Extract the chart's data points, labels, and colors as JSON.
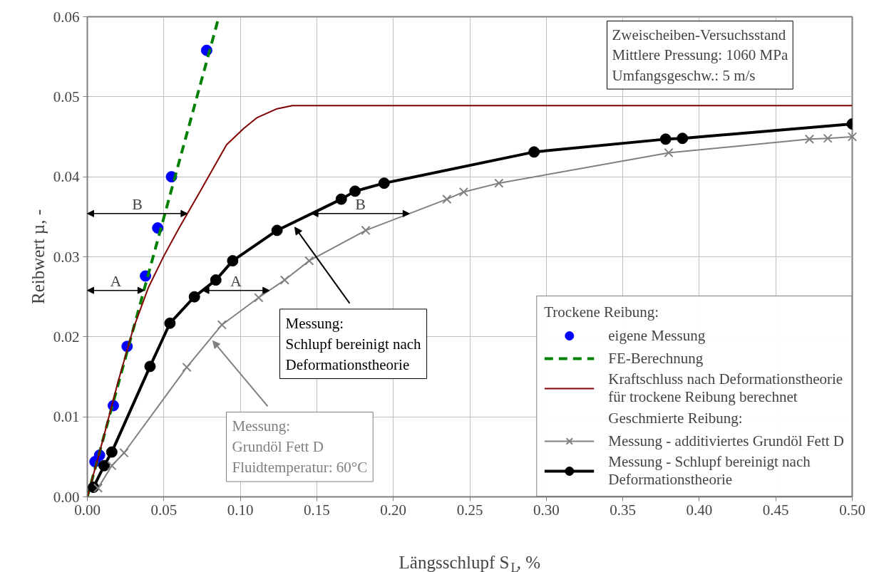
{
  "chart_data": {
    "type": "line",
    "xlabel": "Längsschlupf S$_{L}$, %",
    "ylabel": "Reibwert µ, -",
    "xlim": [
      0,
      0.5
    ],
    "ylim": [
      0,
      0.06
    ],
    "xticks": [
      {
        "value": 0,
        "label": "0.00"
      },
      {
        "value": 0.05,
        "label": "0.05"
      },
      {
        "value": 0.1,
        "label": "0.10"
      },
      {
        "value": 0.15,
        "label": "0.15"
      },
      {
        "value": 0.2,
        "label": "0.20"
      },
      {
        "value": 0.25,
        "label": "0.25"
      },
      {
        "value": 0.3,
        "label": "0.30"
      },
      {
        "value": 0.35,
        "label": "0.35"
      },
      {
        "value": 0.4,
        "label": "0.40"
      },
      {
        "value": 0.45,
        "label": "0.45"
      },
      {
        "value": 0.5,
        "label": "0.50"
      }
    ],
    "yticks": [
      {
        "value": 0,
        "label": "0.00"
      },
      {
        "value": 0.01,
        "label": "0.01"
      },
      {
        "value": 0.02,
        "label": "0.02"
      },
      {
        "value": 0.03,
        "label": "0.03"
      },
      {
        "value": 0.04,
        "label": "0.04"
      },
      {
        "value": 0.05,
        "label": "0.05"
      },
      {
        "value": 0.06,
        "label": "0.06"
      }
    ],
    "grid": true,
    "legend": "bottom right",
    "legend_title": "Trockene Reibung:",
    "series": [
      {
        "name": "eigene Messung",
        "type": "scatter",
        "marker": "circle",
        "color": "#0000ff",
        "x": [
          0.005,
          0.008,
          0.017,
          0.026,
          0.038,
          0.046,
          0.055,
          0.078
        ],
        "values": [
          0.0044,
          0.0052,
          0.0114,
          0.0188,
          0.0276,
          0.0336,
          0.04,
          0.0558
        ]
      },
      {
        "name": "FE-Berechnung",
        "line_style": "dashed",
        "marker": "none",
        "color": "#008000",
        "x": [
          0,
          0.086
        ],
        "values": [
          0,
          0.06
        ]
      },
      {
        "name": "Kraftschluss nach Deformationstheorie\nfür trockene Reibung berechnet",
        "marker": "none",
        "color": "#800000",
        "x": [
          0,
          0.01,
          0.02,
          0.03,
          0.04,
          0.05,
          0.06,
          0.075,
          0.091,
          0.102,
          0.111,
          0.124,
          0.134,
          0.5
        ],
        "values": [
          0,
          0.007,
          0.0143,
          0.021,
          0.0262,
          0.0301,
          0.0336,
          0.0386,
          0.044,
          0.046,
          0.0474,
          0.0485,
          0.0489,
          0.0489
        ]
      },
      {
        "name": "Messung - additiviertes Grundöl Fett D",
        "marker": "cross",
        "color": "#808080",
        "x": [
          0.007,
          0.016,
          0.024,
          0.065,
          0.088,
          0.112,
          0.129,
          0.145,
          0.182,
          0.235,
          0.246,
          0.269,
          0.38,
          0.472,
          0.484,
          0.5
        ],
        "values": [
          0.0011,
          0.0039,
          0.0055,
          0.0162,
          0.0215,
          0.0249,
          0.0271,
          0.0295,
          0.0333,
          0.0372,
          0.0381,
          0.0392,
          0.043,
          0.0447,
          0.0448,
          0.045
        ]
      },
      {
        "name": "Messung - Schlupf bereinigt nach\nDeformationstheorie",
        "marker": "circle",
        "color": "#000000",
        "x": [
          0.004,
          0.011,
          0.016,
          0.041,
          0.054,
          0.07,
          0.084,
          0.095,
          0.124,
          0.166,
          0.175,
          0.194,
          0.292,
          0.378,
          0.389,
          0.5
        ],
        "values": [
          0.0012,
          0.0039,
          0.0056,
          0.0163,
          0.0217,
          0.025,
          0.0271,
          0.0295,
          0.0333,
          0.0372,
          0.0382,
          0.0392,
          0.0431,
          0.0447,
          0.0448,
          0.0466
        ]
      }
    ],
    "annotations": [
      "Zweischeiben-Versuchsstand\nMittlere Pressung: 1060 MPa\nUmfangsgeschw.: 5 m/s",
      "Geschmierte Reibung:",
      {
        "text": "Messung:\nSchlupf bereinigt nach\nDeformationstheorie",
        "x": 0.1356,
        "y": 0.0337
      },
      {
        "text": "Messung:\nGrundöl Fett D\nFluidtemperatur: 60°C",
        "x": 0.082,
        "y": 0.0195
      },
      {
        "text": "A",
        "x": 0.0372,
        "y": 0.0258
      },
      {
        "text": "A",
        "x": 0.0753,
        "y": 0.0258
      },
      {
        "text": "B",
        "x": 0.0654,
        "y": 0.0354
      },
      {
        "text": "B",
        "x": 0.1466,
        "y": 0.0354
      }
    ]
  }
}
